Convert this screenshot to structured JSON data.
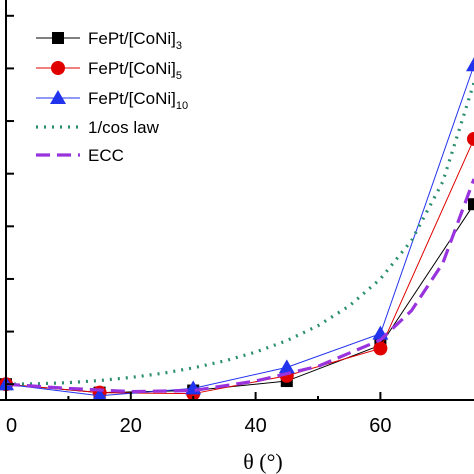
{
  "chart_data": {
    "type": "line",
    "title": "",
    "xlabel": "θ (°)",
    "ylabel": "",
    "xlim": [
      0,
      75
    ],
    "ylim": [
      0.85,
      4.65
    ],
    "x_ticks": [
      0,
      20,
      40,
      60
    ],
    "x_tick_labels": [
      "0",
      "20",
      "40",
      "60"
    ],
    "y_ticks": [
      1,
      1.5,
      2,
      2.5,
      3,
      3.5,
      4,
      4.5
    ],
    "grid": false,
    "legend_position": "top-left",
    "legend": [
      {
        "base": "FePt/[CoNi]",
        "sub": "3"
      },
      {
        "base": "FePt/[CoNi]",
        "sub": "5"
      },
      {
        "base": "FePt/[CoNi]",
        "sub": "10"
      },
      {
        "base": "1/cos law",
        "sub": ""
      },
      {
        "base": "ECC",
        "sub": ""
      }
    ],
    "series": [
      {
        "name": "FePt/[CoNi]3",
        "color": "#000000",
        "marker": "square",
        "line": "solid",
        "x": [
          0,
          15,
          30,
          45,
          60,
          75
        ],
        "y": [
          1.0,
          0.92,
          0.94,
          1.03,
          1.37,
          2.71
        ]
      },
      {
        "name": "FePt/[CoNi]5",
        "color": "#e00000",
        "marker": "circle",
        "line": "solid",
        "x": [
          0,
          15,
          30,
          45,
          60,
          75
        ],
        "y": [
          1.0,
          0.92,
          0.91,
          1.08,
          1.34,
          3.33
        ]
      },
      {
        "name": "FePt/[CoNi]10",
        "color": "#2233ee",
        "marker": "triangle",
        "line": "solid",
        "x": [
          0,
          15,
          30,
          45,
          60,
          75
        ],
        "y": [
          1.0,
          0.89,
          0.96,
          1.16,
          1.48,
          4.03
        ]
      },
      {
        "name": "1/cos law",
        "color": "#2a8f6f",
        "marker": "none",
        "line": "dotted",
        "x": [
          0,
          5,
          10,
          15,
          20,
          25,
          30,
          35,
          40,
          45,
          50,
          55,
          60,
          65,
          70,
          75
        ],
        "y": [
          1.0,
          1.004,
          1.015,
          1.035,
          1.064,
          1.103,
          1.155,
          1.221,
          1.305,
          1.414,
          1.556,
          1.743,
          2.0,
          2.366,
          2.924,
          3.864
        ]
      },
      {
        "name": "ECC",
        "color": "#9933dd",
        "marker": "none",
        "line": "dashed",
        "x": [
          0,
          10,
          20,
          30,
          40,
          50,
          60,
          65,
          70,
          75
        ],
        "y": [
          1.0,
          0.96,
          0.93,
          0.94,
          1.03,
          1.17,
          1.42,
          1.7,
          2.15,
          2.95
        ]
      }
    ]
  }
}
